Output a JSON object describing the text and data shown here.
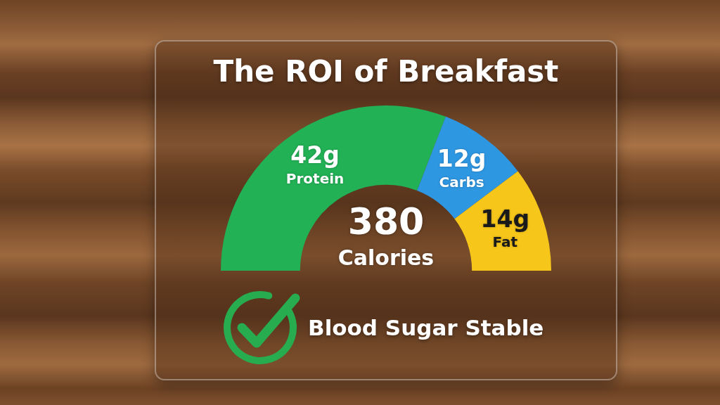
{
  "chart_data": {
    "type": "donut",
    "title": "The ROI of Breakfast",
    "categories": [
      "Protein",
      "Carbs",
      "Fat"
    ],
    "values": [
      42,
      12,
      14
    ],
    "colors": [
      "#22b155",
      "#2e97e2",
      "#f6c61a"
    ],
    "value_labels": [
      "42g",
      "12g",
      "14g"
    ],
    "annotations": [
      "380",
      "Calories",
      "Blood Sugar Stable"
    ]
  }
}
